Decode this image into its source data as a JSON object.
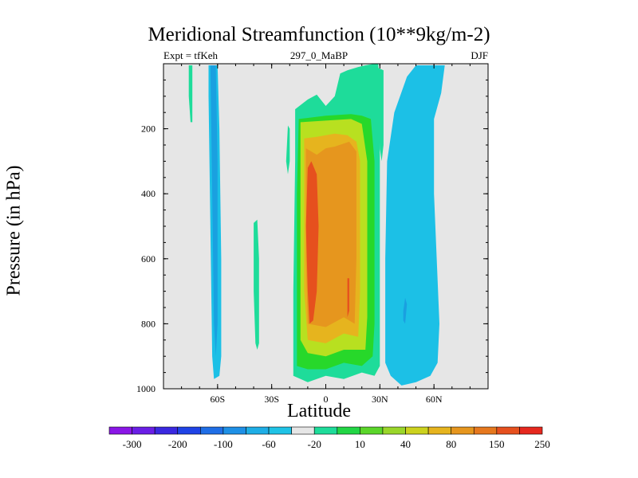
{
  "title": "Meridional Streamfunction (10**9kg/m-2)",
  "subtitle_left": "Expt = tfKeh",
  "subtitle_center": "297_0_MaBP",
  "subtitle_right": "DJF",
  "chart_data": {
    "type": "contour",
    "xlabel": "Latitude",
    "ylabel": "Pressure (in hPa)",
    "xlim": [
      -90,
      90
    ],
    "ylim": [
      1000,
      0
    ],
    "x_ticks": [
      {
        "value": -60,
        "label": "60S"
      },
      {
        "value": -30,
        "label": "30S"
      },
      {
        "value": 0,
        "label": "0"
      },
      {
        "value": 30,
        "label": "30N"
      },
      {
        "value": 60,
        "label": "60N"
      }
    ],
    "y_ticks": [
      {
        "value": 200,
        "label": "200"
      },
      {
        "value": 400,
        "label": "400"
      },
      {
        "value": 600,
        "label": "600"
      },
      {
        "value": 800,
        "label": "800"
      },
      {
        "value": 1000,
        "label": "1000"
      }
    ],
    "background_color": "#e6e6e6",
    "colorbar": {
      "labels": [
        "-300",
        "-200",
        "-100",
        "-60",
        "-20",
        "10",
        "40",
        "80",
        "150",
        "250"
      ],
      "colors": [
        "#8a16e6",
        "#6a1ee6",
        "#3a28e0",
        "#1f43e6",
        "#1f6ee6",
        "#1e90e6",
        "#1eaee6",
        "#1fc3e6",
        "#e6e6e6",
        "#1edc9a",
        "#22d645",
        "#5bd62a",
        "#9ad62a",
        "#ccd21e",
        "#e6b41e",
        "#e6961e",
        "#e6781e",
        "#e6501e",
        "#e6281e"
      ]
    },
    "cells": [
      {
        "name": "antarctic-cell-outer",
        "value": -20,
        "points": [
          [
            -65,
            5
          ],
          [
            -60,
            5
          ],
          [
            -59,
            200
          ],
          [
            -58,
            600
          ],
          [
            -58,
            900
          ],
          [
            -59,
            960
          ],
          [
            -62,
            970
          ],
          [
            -63,
            900
          ],
          [
            -64,
            500
          ],
          [
            -65,
            100
          ]
        ]
      },
      {
        "name": "antarctic-cell-core",
        "value": -60,
        "points": [
          [
            -64,
            5
          ],
          [
            -61,
            5
          ],
          [
            -60,
            300
          ],
          [
            -60,
            800
          ],
          [
            -61,
            900
          ],
          [
            -62,
            800
          ],
          [
            -63,
            400
          ]
        ]
      },
      {
        "name": "southern-ferrel-upper",
        "value": 10,
        "points": [
          [
            -76,
            5
          ],
          [
            -74,
            5
          ],
          [
            -74,
            180
          ],
          [
            -75,
            180
          ],
          [
            -76,
            100
          ]
        ]
      },
      {
        "name": "southern-ferrel-mid",
        "value": 10,
        "points": [
          [
            -40,
            490
          ],
          [
            -38,
            480
          ],
          [
            -37,
            600
          ],
          [
            -37,
            860
          ],
          [
            -38,
            880
          ],
          [
            -39,
            860
          ],
          [
            -40,
            700
          ]
        ]
      },
      {
        "name": "southern-ferrel-strip",
        "value": 10,
        "points": [
          [
            -21,
            190
          ],
          [
            -20,
            200
          ],
          [
            -20,
            300
          ],
          [
            -21,
            340
          ],
          [
            -22,
            300
          ]
        ]
      },
      {
        "name": "hadley-cell-10",
        "value": 10,
        "points": [
          [
            -17,
            140
          ],
          [
            -10,
            110
          ],
          [
            -5,
            95
          ],
          [
            0,
            130
          ],
          [
            5,
            100
          ],
          [
            8,
            30
          ],
          [
            12,
            20
          ],
          [
            18,
            10
          ],
          [
            22,
            5
          ],
          [
            27,
            0
          ],
          [
            29,
            0
          ],
          [
            30,
            50
          ],
          [
            30,
            300
          ],
          [
            30,
            930
          ],
          [
            27,
            960
          ],
          [
            20,
            950
          ],
          [
            10,
            970
          ],
          [
            0,
            960
          ],
          [
            -10,
            980
          ],
          [
            -18,
            960
          ],
          [
            -18,
            700
          ],
          [
            -17,
            300
          ]
        ]
      },
      {
        "name": "hadley-cell-40",
        "value": 40,
        "points": [
          [
            -15,
            170
          ],
          [
            0,
            160
          ],
          [
            14,
            155
          ],
          [
            20,
            160
          ],
          [
            25,
            170
          ],
          [
            27,
            300
          ],
          [
            27,
            800
          ],
          [
            26,
            900
          ],
          [
            20,
            930
          ],
          [
            10,
            920
          ],
          [
            0,
            940
          ],
          [
            -10,
            940
          ],
          [
            -16,
            930
          ],
          [
            -16,
            400
          ]
        ]
      },
      {
        "name": "hadley-cell-80",
        "value": 80,
        "points": [
          [
            -14,
            180
          ],
          [
            0,
            175
          ],
          [
            14,
            170
          ],
          [
            20,
            185
          ],
          [
            23,
            300
          ],
          [
            23,
            780
          ],
          [
            22,
            880
          ],
          [
            10,
            880
          ],
          [
            0,
            900
          ],
          [
            -10,
            890
          ],
          [
            -14,
            850
          ],
          [
            -14,
            400
          ]
        ]
      },
      {
        "name": "hadley-cell-150",
        "value": 150,
        "points": [
          [
            -12,
            230
          ],
          [
            -5,
            225
          ],
          [
            5,
            215
          ],
          [
            12,
            220
          ],
          [
            17,
            240
          ],
          [
            19,
            300
          ],
          [
            19,
            700
          ],
          [
            18,
            840
          ],
          [
            10,
            830
          ],
          [
            0,
            860
          ],
          [
            -10,
            850
          ],
          [
            -12,
            700
          ]
        ]
      },
      {
        "name": "hadley-cell-200",
        "value": 200,
        "points": [
          [
            -11,
            260
          ],
          [
            -5,
            280
          ],
          [
            0,
            260
          ],
          [
            5,
            255
          ],
          [
            13,
            240
          ],
          [
            17,
            270
          ],
          [
            17,
            600
          ],
          [
            16,
            800
          ],
          [
            10,
            780
          ],
          [
            0,
            810
          ],
          [
            -10,
            800
          ],
          [
            -11,
            600
          ]
        ]
      },
      {
        "name": "hadley-cell-250",
        "value": 250,
        "points": [
          [
            -10,
            320
          ],
          [
            -8,
            300
          ],
          [
            -5,
            340
          ],
          [
            -4,
            500
          ],
          [
            -5,
            700
          ],
          [
            -7,
            790
          ],
          [
            -9,
            800
          ],
          [
            -10,
            700
          ],
          [
            -11,
            500
          ]
        ]
      },
      {
        "name": "hadley-cell-250-streak",
        "value": 250,
        "points": [
          [
            12,
            660
          ],
          [
            13,
            660
          ],
          [
            13,
            760
          ],
          [
            12,
            780
          ]
        ]
      },
      {
        "name": "northern-ferrel-strip",
        "value": 10,
        "points": [
          [
            28,
            10
          ],
          [
            32,
            20
          ],
          [
            32,
            250
          ],
          [
            31,
            300
          ],
          [
            30,
            260
          ],
          [
            29,
            120
          ]
        ]
      },
      {
        "name": "northern-cell-outer",
        "value": -20,
        "points": [
          [
            50,
            5
          ],
          [
            66,
            5
          ],
          [
            64,
            90
          ],
          [
            60,
            170
          ],
          [
            60,
            400
          ],
          [
            63,
            800
          ],
          [
            62,
            920
          ],
          [
            58,
            960
          ],
          [
            50,
            980
          ],
          [
            42,
            990
          ],
          [
            36,
            960
          ],
          [
            33,
            920
          ],
          [
            33,
            600
          ],
          [
            34,
            300
          ],
          [
            38,
            150
          ],
          [
            45,
            40
          ]
        ]
      },
      {
        "name": "northern-cell-core",
        "value": -60,
        "points": [
          [
            43,
            760
          ],
          [
            44,
            720
          ],
          [
            45,
            740
          ],
          [
            44,
            800
          ],
          [
            43,
            790
          ]
        ]
      }
    ]
  }
}
